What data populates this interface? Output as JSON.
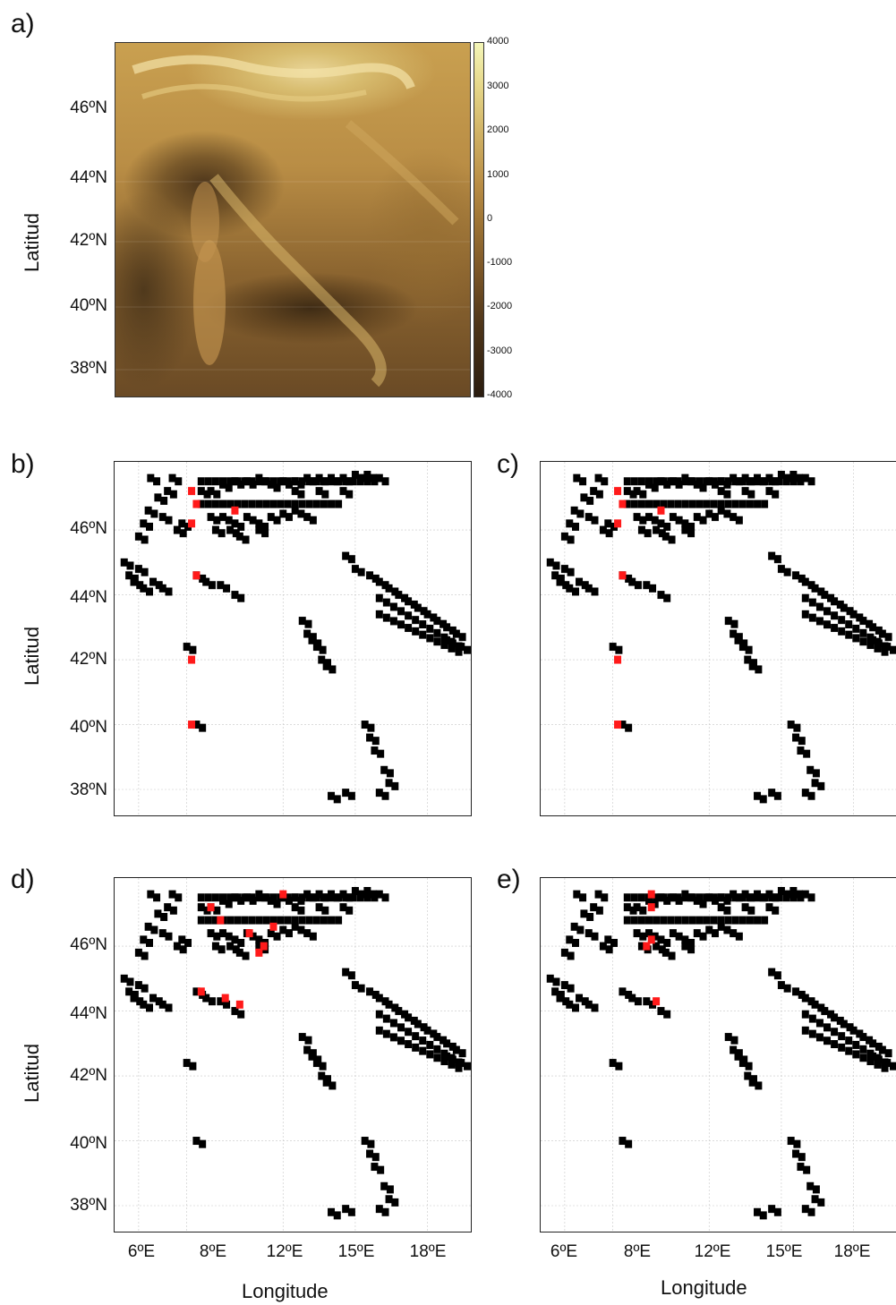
{
  "panels": {
    "a": "a)",
    "b": "b)",
    "c": "c)",
    "d": "d)",
    "e": "e)"
  },
  "axes": {
    "ylabel": "Latitud",
    "xlabel": "Longitude",
    "lat_ticks": [
      "46ºN",
      "44ºN",
      "42ºN",
      "40ºN",
      "38ºN"
    ],
    "lon_ticks": [
      "6ºE",
      "8ºE",
      "12ºE",
      "15ºE",
      "18ºE"
    ]
  },
  "colorbar": {
    "ticks": [
      "4000",
      "3000",
      "2000",
      "1000",
      "0",
      "-1000",
      "-2000",
      "-3000",
      "-4000"
    ]
  },
  "colors": {
    "land_cells": "#000000",
    "highlight_cells": "#ff1a1a",
    "grid": "#c8c8c8"
  },
  "map_data": {
    "type": "heatmap",
    "description_cells": "black grid cells with red highlighted cells on white background",
    "cells_black": [
      [
        6.5,
        47.6
      ],
      [
        7.4,
        47.6
      ],
      [
        7.2,
        47.2
      ],
      [
        6.8,
        47.0
      ],
      [
        6.4,
        46.6
      ],
      [
        6.2,
        46.2
      ],
      [
        6.0,
        45.8
      ],
      [
        7.0,
        46.4
      ],
      [
        7.6,
        46.0
      ],
      [
        7.8,
        46.2
      ],
      [
        8.6,
        47.2
      ],
      [
        9.0,
        47.2
      ],
      [
        9.5,
        47.4
      ],
      [
        10.0,
        47.5
      ],
      [
        10.5,
        47.5
      ],
      [
        11.0,
        47.6
      ],
      [
        11.5,
        47.4
      ],
      [
        12.0,
        47.5
      ],
      [
        12.5,
        47.5
      ],
      [
        13.0,
        47.6
      ],
      [
        13.5,
        47.6
      ],
      [
        14.0,
        47.6
      ],
      [
        14.5,
        47.6
      ],
      [
        15.0,
        47.7
      ],
      [
        15.5,
        47.7
      ],
      [
        16.0,
        47.6
      ],
      [
        12.5,
        47.2
      ],
      [
        13.5,
        47.2
      ],
      [
        14.5,
        47.2
      ],
      [
        9.0,
        46.4
      ],
      [
        9.5,
        46.4
      ],
      [
        10.0,
        46.2
      ],
      [
        10.5,
        46.4
      ],
      [
        11.0,
        46.2
      ],
      [
        11.5,
        46.4
      ],
      [
        12.0,
        46.5
      ],
      [
        12.5,
        46.6
      ],
      [
        13.0,
        46.4
      ],
      [
        9.2,
        46.0
      ],
      [
        9.8,
        46.0
      ],
      [
        10.2,
        45.8
      ],
      [
        11.0,
        46.0
      ],
      [
        5.4,
        45.0
      ],
      [
        5.6,
        44.6
      ],
      [
        5.8,
        44.4
      ],
      [
        6.0,
        44.8
      ],
      [
        6.2,
        44.2
      ],
      [
        6.6,
        44.4
      ],
      [
        7.0,
        44.2
      ],
      [
        8.4,
        44.6
      ],
      [
        8.8,
        44.4
      ],
      [
        9.4,
        44.3
      ],
      [
        10.0,
        44.0
      ],
      [
        14.6,
        45.2
      ],
      [
        15.0,
        44.8
      ],
      [
        15.6,
        44.6
      ],
      [
        16.0,
        44.4
      ],
      [
        16.4,
        44.2
      ],
      [
        16.8,
        44.0
      ],
      [
        17.2,
        43.8
      ],
      [
        17.6,
        43.6
      ],
      [
        18.0,
        43.4
      ],
      [
        18.4,
        43.2
      ],
      [
        18.8,
        43.0
      ],
      [
        19.2,
        42.8
      ],
      [
        19.4,
        42.4
      ],
      [
        18.8,
        42.6
      ],
      [
        12.8,
        43.2
      ],
      [
        13.0,
        42.8
      ],
      [
        13.2,
        42.6
      ],
      [
        13.4,
        42.4
      ],
      [
        13.6,
        42.0
      ],
      [
        13.8,
        41.8
      ],
      [
        8.0,
        42.4
      ],
      [
        8.4,
        40.0
      ],
      [
        15.4,
        40.0
      ],
      [
        15.6,
        39.6
      ],
      [
        15.8,
        39.2
      ],
      [
        16.2,
        38.6
      ],
      [
        16.4,
        38.2
      ],
      [
        14.0,
        37.8
      ],
      [
        14.6,
        37.9
      ],
      [
        16.0,
        37.9
      ]
    ],
    "cells_red": [
      [
        8.2,
        47.2
      ],
      [
        8.4,
        46.8
      ],
      [
        8.2,
        46.2
      ],
      [
        8.4,
        44.6
      ],
      [
        8.2,
        42.0
      ],
      [
        8.2,
        40.0
      ],
      [
        10.0,
        46.6
      ]
    ]
  }
}
